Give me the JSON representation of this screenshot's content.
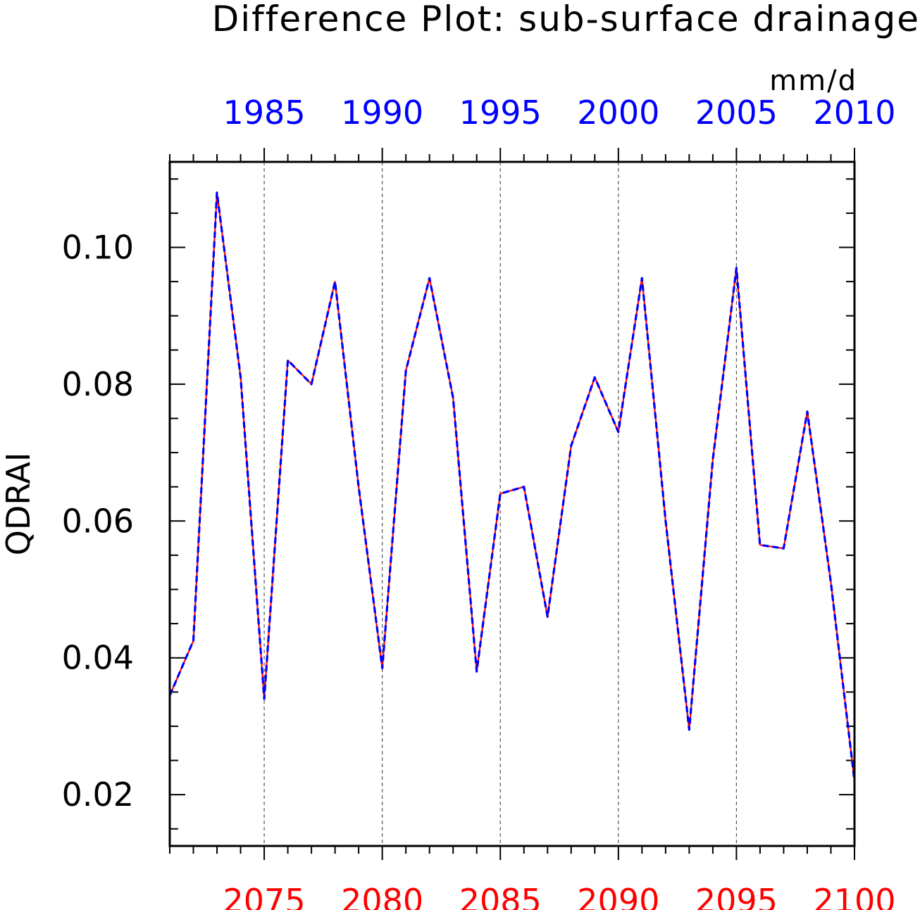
{
  "chart_data": {
    "type": "line",
    "title": "Difference Plot: sub-surface drainage",
    "units": "mm/d",
    "ylabel": "QDRAI",
    "ylim": [
      0.0125,
      0.1125
    ],
    "y_ticks": [
      "0.02",
      "0.04",
      "0.06",
      "0.08",
      "0.10"
    ],
    "y_tick_values": [
      0.02,
      0.04,
      0.06,
      0.08,
      0.1
    ],
    "bottom_axis": {
      "color": "#ff0000",
      "range": [
        2071,
        2100
      ],
      "ticks": [
        "2075",
        "2080",
        "2085",
        "2090",
        "2095",
        "2100"
      ],
      "tick_values": [
        2075,
        2080,
        2085,
        2090,
        2095,
        2100
      ]
    },
    "top_axis": {
      "color": "#0000ff",
      "range": [
        1981,
        2010
      ],
      "ticks": [
        "1985",
        "1990",
        "1995",
        "2000",
        "2005",
        "2010"
      ],
      "tick_values": [
        1985,
        1990,
        1995,
        2000,
        2005,
        2010
      ]
    },
    "grid": "dashed vertical at major bottom-axis ticks",
    "x": [
      2071,
      2072,
      2073,
      2074,
      2075,
      2076,
      2077,
      2078,
      2079,
      2080,
      2081,
      2082,
      2083,
      2084,
      2085,
      2086,
      2087,
      2088,
      2089,
      2090,
      2091,
      2092,
      2093,
      2094,
      2095,
      2096,
      2097,
      2098,
      2099,
      2100
    ],
    "series": [
      {
        "color": "#ff0000",
        "style": "solid",
        "values": [
          0.0345,
          0.0425,
          0.108,
          0.081,
          0.034,
          0.0835,
          0.08,
          0.095,
          0.065,
          0.0385,
          0.082,
          0.0955,
          0.078,
          0.038,
          0.064,
          0.065,
          0.046,
          0.071,
          0.081,
          0.073,
          0.0955,
          0.06,
          0.0295,
          0.069,
          0.097,
          0.0565,
          0.056,
          0.076,
          0.051,
          0.022
        ]
      },
      {
        "color": "#0000ff",
        "style": "dashed",
        "values": [
          0.0345,
          0.0425,
          0.108,
          0.081,
          0.034,
          0.0835,
          0.08,
          0.095,
          0.065,
          0.0385,
          0.082,
          0.0955,
          0.078,
          0.038,
          0.064,
          0.065,
          0.046,
          0.071,
          0.081,
          0.073,
          0.0955,
          0.06,
          0.0295,
          0.069,
          0.097,
          0.0565,
          0.056,
          0.076,
          0.051,
          0.022
        ]
      }
    ]
  }
}
